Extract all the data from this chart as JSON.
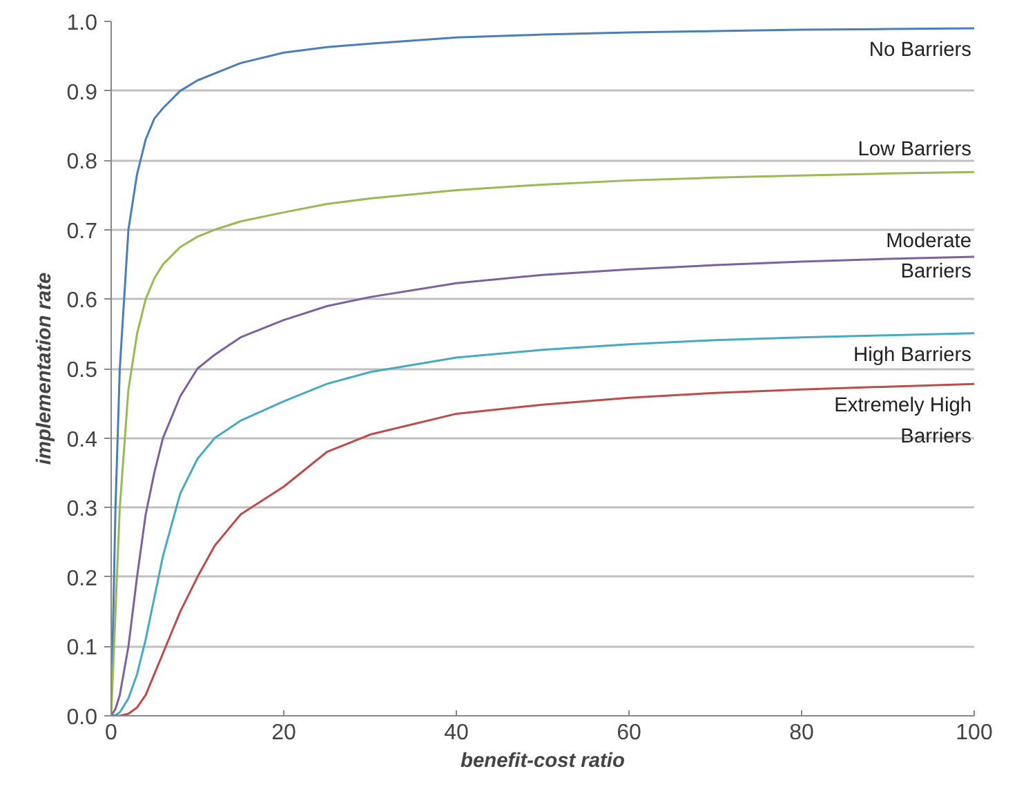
{
  "chart_data": {
    "type": "line",
    "xlabel": "benefit-cost ratio",
    "ylabel": "implementation rate",
    "xlim": [
      0,
      100
    ],
    "ylim": [
      0,
      1
    ],
    "xticks": [
      0,
      20,
      40,
      60,
      80,
      100
    ],
    "yticks": [
      {
        "value": 0,
        "label": "0.0"
      },
      {
        "value": 0.1,
        "label": "0.1"
      },
      {
        "value": 0.2,
        "label": "0.2"
      },
      {
        "value": 0.3,
        "label": "0.3"
      },
      {
        "value": 0.4,
        "label": "0.4"
      },
      {
        "value": 0.5,
        "label": "0.5"
      },
      {
        "value": 0.6,
        "label": "0.6"
      },
      {
        "value": 0.7,
        "label": "0.7"
      },
      {
        "value": 0.8,
        "label": "0.8"
      },
      {
        "value": 0.9,
        "label": "0.9"
      },
      {
        "value": 1,
        "label": "1.0"
      }
    ],
    "grid": "y",
    "marker": "none",
    "line_style": "solid",
    "x": [
      0,
      0.5,
      1,
      2,
      3,
      4,
      5,
      6,
      8,
      10,
      12,
      15,
      20,
      25,
      30,
      40,
      50,
      60,
      70,
      80,
      90,
      100
    ],
    "series": [
      {
        "name": "No Barriers",
        "color": "#4a7ebb",
        "values": [
          0,
          0.3,
          0.5,
          0.7,
          0.78,
          0.83,
          0.86,
          0.875,
          0.9,
          0.915,
          0.925,
          0.94,
          0.955,
          0.963,
          0.968,
          0.977,
          0.981,
          0.984,
          0.986,
          0.988,
          0.989,
          0.99
        ]
      },
      {
        "name": "Low Barriers",
        "color": "#98b954",
        "values": [
          0,
          0.15,
          0.3,
          0.47,
          0.55,
          0.6,
          0.63,
          0.65,
          0.675,
          0.69,
          0.7,
          0.712,
          0.725,
          0.737,
          0.745,
          0.757,
          0.765,
          0.771,
          0.775,
          0.778,
          0.781,
          0.783
        ]
      },
      {
        "name": "Moderate\nBarriers",
        "color": "#7d60a0",
        "values": [
          0,
          0.01,
          0.03,
          0.1,
          0.2,
          0.29,
          0.35,
          0.4,
          0.46,
          0.5,
          0.52,
          0.545,
          0.57,
          0.59,
          0.603,
          0.623,
          0.635,
          0.643,
          0.649,
          0.654,
          0.658,
          0.661
        ]
      },
      {
        "name": "High Barriers",
        "color": "#46aac5",
        "values": [
          0,
          0.001,
          0.005,
          0.025,
          0.06,
          0.11,
          0.17,
          0.23,
          0.32,
          0.37,
          0.4,
          0.425,
          0.453,
          0.478,
          0.495,
          0.516,
          0.527,
          0.535,
          0.541,
          0.545,
          0.548,
          0.551
        ]
      },
      {
        "name": "Extremely High\nBarriers",
        "color": "#be4b48",
        "values": [
          0,
          0,
          0,
          0.003,
          0.012,
          0.03,
          0.06,
          0.09,
          0.15,
          0.2,
          0.245,
          0.29,
          0.33,
          0.38,
          0.405,
          0.435,
          0.448,
          0.458,
          0.465,
          0.47,
          0.474,
          0.478
        ]
      }
    ]
  }
}
